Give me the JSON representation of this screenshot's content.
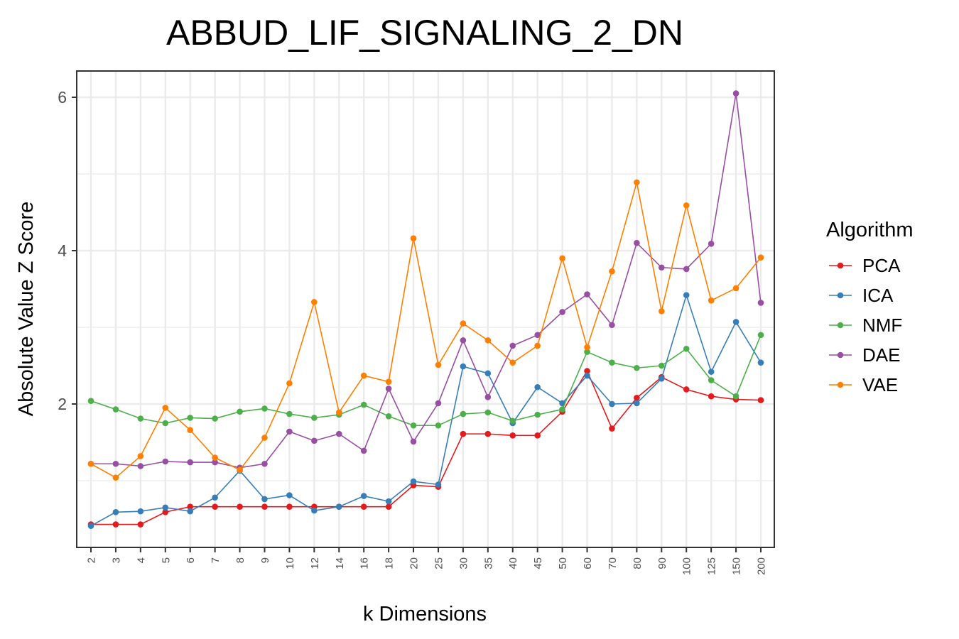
{
  "chart_data": {
    "type": "line",
    "title": "ABBUD_LIF_SIGNALING_2_DN",
    "xlabel": "k Dimensions",
    "ylabel": "Absolute Value Z Score",
    "ylim": [
      0,
      6.3
    ],
    "yticks": [
      2,
      4,
      6
    ],
    "grid": true,
    "legend_title": "Algorithm",
    "legend_position": "right",
    "categories": [
      "2",
      "3",
      "4",
      "5",
      "6",
      "7",
      "8",
      "9",
      "10",
      "12",
      "14",
      "16",
      "18",
      "20",
      "25",
      "30",
      "35",
      "40",
      "45",
      "50",
      "60",
      "70",
      "80",
      "90",
      "100",
      "125",
      "150",
      "200"
    ],
    "series": [
      {
        "name": "PCA",
        "color": "#e41a1c",
        "values": [
          0.43,
          0.43,
          0.43,
          0.59,
          0.66,
          0.66,
          0.66,
          0.66,
          0.66,
          0.66,
          0.66,
          0.66,
          0.66,
          0.94,
          0.92,
          1.61,
          1.61,
          1.59,
          1.59,
          1.9,
          2.43,
          1.68,
          2.08,
          2.35,
          2.19,
          2.1,
          2.06,
          2.05
        ]
      },
      {
        "name": "ICA",
        "color": "#377eb8",
        "values": [
          0.41,
          0.59,
          0.6,
          0.65,
          0.6,
          0.78,
          1.13,
          0.76,
          0.81,
          0.61,
          0.66,
          0.8,
          0.73,
          0.99,
          0.95,
          2.49,
          2.4,
          1.75,
          2.22,
          2.01,
          2.37,
          2.0,
          2.01,
          2.33,
          3.42,
          2.42,
          3.07,
          2.54
        ]
      },
      {
        "name": "NMF",
        "color": "#4daf4a",
        "values": [
          2.04,
          1.93,
          1.81,
          1.75,
          1.82,
          1.81,
          1.9,
          1.94,
          1.87,
          1.82,
          1.86,
          1.99,
          1.84,
          1.72,
          1.72,
          1.87,
          1.89,
          1.78,
          1.86,
          1.93,
          2.68,
          2.54,
          2.47,
          2.5,
          2.72,
          2.31,
          2.1,
          2.9
        ]
      },
      {
        "name": "DAE",
        "color": "#984ea3",
        "values": [
          1.22,
          1.22,
          1.19,
          1.25,
          1.24,
          1.24,
          1.17,
          1.22,
          1.64,
          1.52,
          1.61,
          1.39,
          2.2,
          1.51,
          2.01,
          2.83,
          2.09,
          2.76,
          2.9,
          3.2,
          3.43,
          3.03,
          4.1,
          3.78,
          3.76,
          4.09,
          6.05,
          3.32
        ]
      },
      {
        "name": "VAE",
        "color": "#ff7f00",
        "values": [
          1.22,
          1.04,
          1.32,
          1.95,
          1.66,
          1.3,
          1.14,
          1.56,
          2.27,
          3.33,
          1.89,
          2.37,
          2.29,
          4.16,
          2.51,
          3.05,
          2.83,
          2.54,
          2.76,
          3.9,
          2.74,
          3.73,
          4.89,
          3.21,
          4.59,
          3.35,
          3.51,
          3.91
        ]
      }
    ]
  }
}
